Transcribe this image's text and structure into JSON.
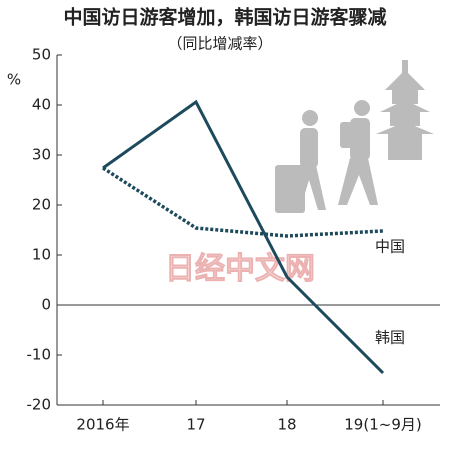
{
  "chart_data": {
    "type": "line",
    "title": "中国访日游客增加，韩国访日游客骤减",
    "subtitle": "（同比增减率）",
    "y_unit": "%",
    "watermark": "日经中文网",
    "categories": [
      "2016年",
      "17",
      "18",
      "19(1~9月)"
    ],
    "series": [
      {
        "name": "中国",
        "color": "#1d4a5c",
        "style": "dotted",
        "values": [
          27.4,
          15.4,
          13.8,
          14.8
        ]
      },
      {
        "name": "韩国",
        "color": "#1d4a5c",
        "style": "solid",
        "values": [
          27.4,
          40.6,
          5.6,
          -13.6
        ]
      }
    ],
    "ylim": [
      -20,
      50
    ],
    "yticks": [
      -20,
      -10,
      0,
      10,
      20,
      30,
      40,
      50
    ]
  }
}
